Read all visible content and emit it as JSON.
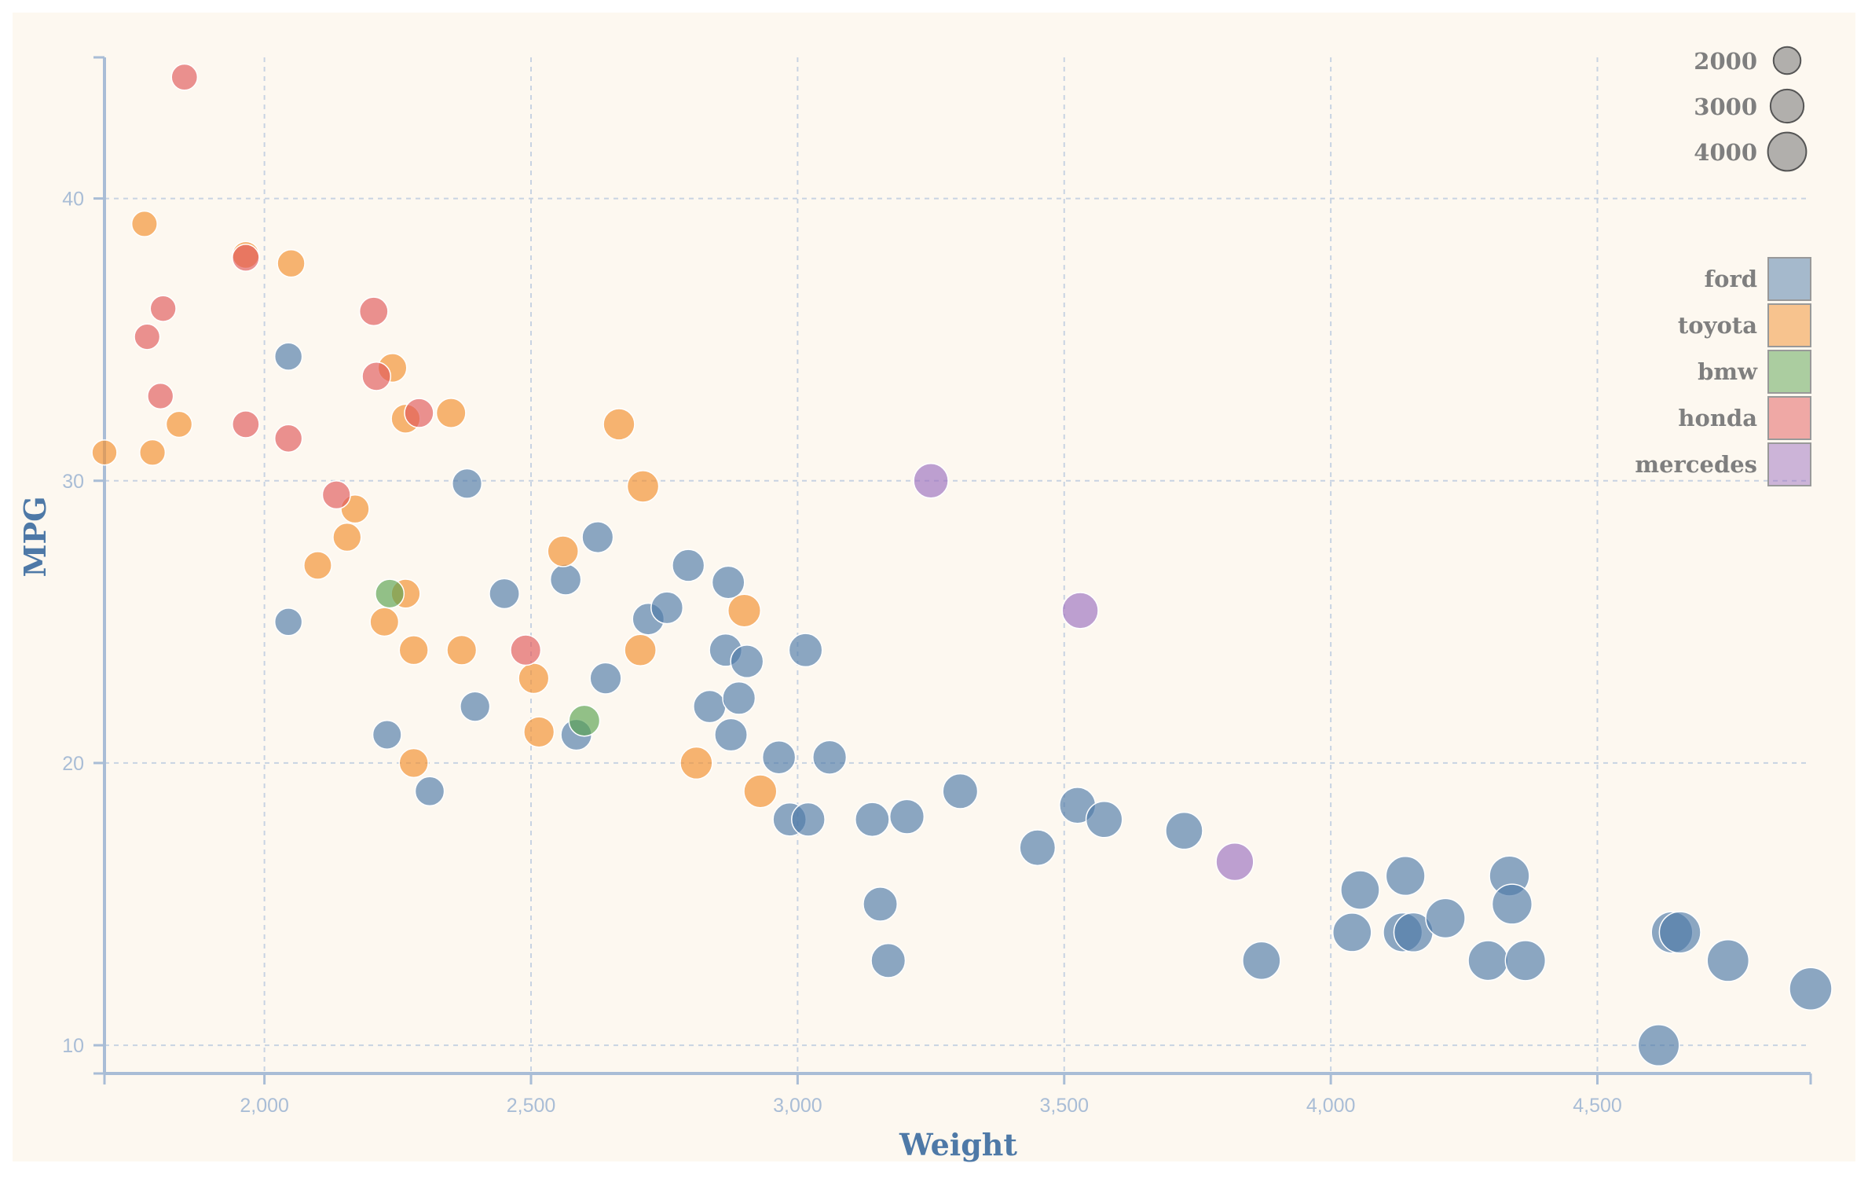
{
  "chart_data": {
    "type": "scatter",
    "xlabel": "Weight",
    "ylabel": "MPG",
    "xlim": [
      1700,
      4900
    ],
    "ylim": [
      9,
      45
    ],
    "x_ticks": [
      2000,
      2500,
      3000,
      3500,
      4000,
      4500
    ],
    "x_tick_labels": [
      "2,000",
      "2,500",
      "3,000",
      "3,500",
      "4,000",
      "4,500"
    ],
    "y_ticks": [
      10,
      20,
      30,
      40
    ],
    "y_tick_labels": [
      "10",
      "20",
      "30",
      "40"
    ],
    "grid": true,
    "size_legend": {
      "placement": "top-right",
      "entries": [
        {
          "label": "2000",
          "value": 2000
        },
        {
          "label": "3000",
          "value": 3000
        },
        {
          "label": "4000",
          "value": 4000
        }
      ]
    },
    "color_legend": {
      "placement": "right",
      "entries": [
        "ford",
        "toyota",
        "bmw",
        "honda",
        "mercedes"
      ]
    },
    "colors": {
      "ford": "#4e79a7",
      "toyota": "#f28e2b",
      "bmw": "#59a14f",
      "honda": "#e15759",
      "mercedes": "#9b6fbf"
    },
    "series": [
      {
        "name": "ford",
        "points": [
          [
            2045,
            34.4
          ],
          [
            2045,
            25
          ],
          [
            2230,
            21
          ],
          [
            2310,
            19
          ],
          [
            2380,
            29.9
          ],
          [
            2395,
            22
          ],
          [
            2450,
            26
          ],
          [
            2565,
            26.5
          ],
          [
            2585,
            21
          ],
          [
            2625,
            28
          ],
          [
            2640,
            23
          ],
          [
            2720,
            25.1
          ],
          [
            2755,
            25.5
          ],
          [
            2795,
            27
          ],
          [
            2835,
            22
          ],
          [
            2865,
            24
          ],
          [
            2870,
            26.4
          ],
          [
            2875,
            21
          ],
          [
            2890,
            22.3
          ],
          [
            2905,
            23.6
          ],
          [
            2965,
            20.2
          ],
          [
            2985,
            18
          ],
          [
            3015,
            24
          ],
          [
            3020,
            18
          ],
          [
            3060,
            20.2
          ],
          [
            3140,
            18
          ],
          [
            3155,
            15
          ],
          [
            3170,
            13
          ],
          [
            3205,
            18.1
          ],
          [
            3305,
            19
          ],
          [
            3450,
            17
          ],
          [
            3525,
            18.5
          ],
          [
            3575,
            18
          ],
          [
            3725,
            17.6
          ],
          [
            3870,
            13
          ],
          [
            4040,
            14
          ],
          [
            4055,
            15.5
          ],
          [
            4135,
            14
          ],
          [
            4140,
            16
          ],
          [
            4155,
            14
          ],
          [
            4215,
            14.5
          ],
          [
            4295,
            13
          ],
          [
            4335,
            16
          ],
          [
            4340,
            15
          ],
          [
            4365,
            13
          ],
          [
            4615,
            10
          ],
          [
            4640,
            14
          ],
          [
            4655,
            14
          ],
          [
            4745,
            13
          ],
          [
            4900,
            12
          ]
        ]
      },
      {
        "name": "toyota",
        "points": [
          [
            1700,
            31
          ],
          [
            1775,
            39.1
          ],
          [
            1790,
            31
          ],
          [
            1840,
            32
          ],
          [
            1965,
            38
          ],
          [
            2050,
            37.7
          ],
          [
            2100,
            27
          ],
          [
            2155,
            28
          ],
          [
            2170,
            29
          ],
          [
            2225,
            25
          ],
          [
            2240,
            34
          ],
          [
            2265,
            26
          ],
          [
            2265,
            32.2
          ],
          [
            2280,
            20
          ],
          [
            2280,
            24
          ],
          [
            2350,
            32.4
          ],
          [
            2370,
            24
          ],
          [
            2505,
            23
          ],
          [
            2515,
            21.1
          ],
          [
            2560,
            27.5
          ],
          [
            2665,
            32
          ],
          [
            2705,
            24
          ],
          [
            2710,
            29.8
          ],
          [
            2810,
            20
          ],
          [
            2900,
            25.4
          ],
          [
            2930,
            19
          ]
        ]
      },
      {
        "name": "bmw",
        "points": [
          [
            2235,
            26
          ],
          [
            2600,
            21.5
          ]
        ]
      },
      {
        "name": "honda",
        "points": [
          [
            1780,
            35.1
          ],
          [
            1805,
            33
          ],
          [
            1810,
            36.1
          ],
          [
            1850,
            44.3
          ],
          [
            1965,
            32
          ],
          [
            1965,
            37.9
          ],
          [
            2045,
            31.5
          ],
          [
            2135,
            29.5
          ],
          [
            2205,
            36
          ],
          [
            2210,
            33.7
          ],
          [
            2290,
            32.4
          ],
          [
            2490,
            24
          ]
        ]
      },
      {
        "name": "mercedes",
        "points": [
          [
            3250,
            30
          ],
          [
            3530,
            25.4
          ],
          [
            3820,
            16.5
          ]
        ]
      }
    ]
  }
}
